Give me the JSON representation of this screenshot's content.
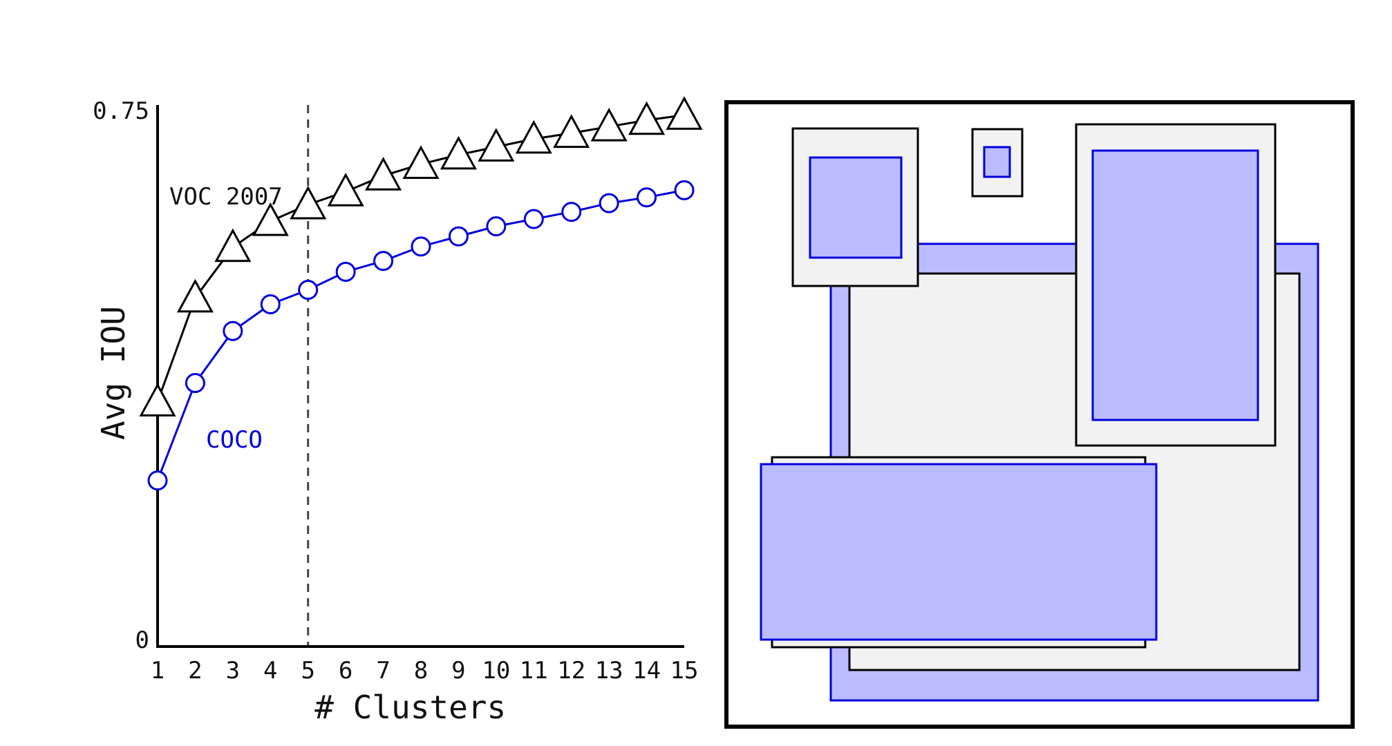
{
  "chart_data": {
    "type": "line",
    "xlabel": "# Clusters",
    "ylabel": "Avg IOU",
    "x": [
      1,
      2,
      3,
      4,
      5,
      6,
      7,
      8,
      9,
      10,
      11,
      12,
      13,
      14,
      15
    ],
    "xlim": [
      1,
      15
    ],
    "ylim": [
      0,
      0.75
    ],
    "y_tick_labels": [
      "0",
      "0.75"
    ],
    "grid": false,
    "marker_line_x": 5,
    "series": [
      {
        "name": "VOC 2007",
        "marker": "triangle",
        "color": "#000000",
        "values": [
          0.339,
          0.483,
          0.553,
          0.589,
          0.612,
          0.63,
          0.652,
          0.668,
          0.681,
          0.692,
          0.703,
          0.711,
          0.72,
          0.729,
          0.736
        ]
      },
      {
        "name": "COCO",
        "marker": "circle",
        "color": "#0000dd",
        "values": [
          0.23,
          0.365,
          0.437,
          0.474,
          0.494,
          0.519,
          0.534,
          0.554,
          0.568,
          0.582,
          0.592,
          0.602,
          0.614,
          0.622,
          0.632
        ]
      }
    ]
  },
  "cluster_diagram": {
    "fill_light": "#f2f2f2",
    "fill_blue": "#bbbcff",
    "stroke_blue": "#0000dd",
    "stroke_black": "#000000"
  }
}
